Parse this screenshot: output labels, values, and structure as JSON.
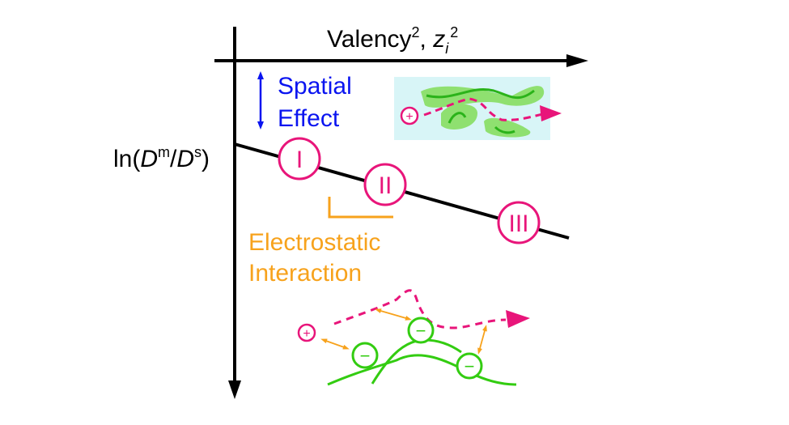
{
  "axes": {
    "x_label_main": "Valency",
    "x_label_sup": "2",
    "x_label_sep": ", ",
    "x_label_var": "z",
    "x_label_sub": "i",
    "x_label_sup2": "2",
    "y_label_prefix": "ln(",
    "y_label_d1": "D",
    "y_label_sup1": "m",
    "y_label_slash": "/",
    "y_label_d2": "D",
    "y_label_sup2": "s",
    "y_label_suffix": ")"
  },
  "spatial_effect": {
    "line1": "Spatial",
    "line2": "Effect"
  },
  "electrostatic": {
    "line1": "Electrostatic",
    "line2": "Interaction"
  },
  "regimes": [
    "I",
    "II",
    "III"
  ],
  "charges": {
    "plus": "+",
    "minus": "−"
  },
  "colors": {
    "axis": "#000000",
    "spatial": "#0a14f0",
    "regime": "#e8157a",
    "electrostatic": "#f7a21c",
    "polymer": "#33cc11",
    "polymer_fill": "#8fe070",
    "inset_bg": "#d8f5f7"
  }
}
